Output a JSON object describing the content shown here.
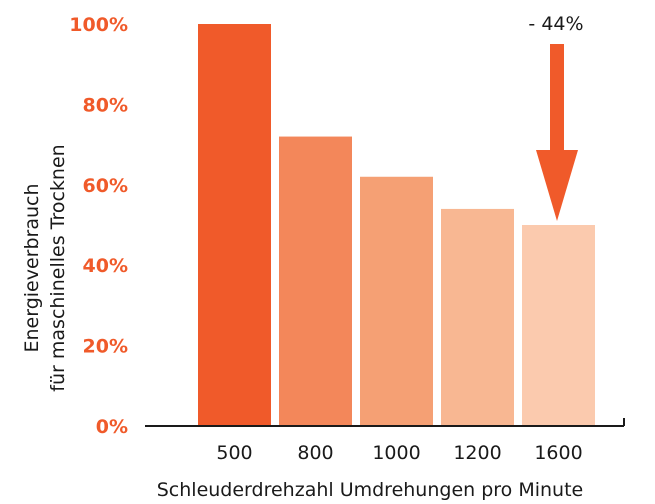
{
  "chart_data": {
    "type": "bar",
    "categories": [
      "500",
      "800",
      "1000",
      "1200",
      "1600"
    ],
    "values": [
      100,
      72,
      62,
      54,
      50
    ],
    "bar_colors": [
      "#f05a2a",
      "#f3875a",
      "#f5a074",
      "#f8b792",
      "#fbcaae"
    ],
    "ylim": [
      0,
      100
    ],
    "y_ticks": [
      "0%",
      "20%",
      "40%",
      "60%",
      "80%",
      "100%"
    ],
    "y_tick_values": [
      0,
      20,
      40,
      60,
      80,
      100
    ],
    "y_tick_color": "#f05a2a",
    "xlabel": "Schleuderdrehzahl Umdrehungen pro Minute",
    "ylabel_line1": "Energieverbrauch",
    "ylabel_line2": "für maschinelles Trocknen",
    "annotation": "- 44%",
    "arrow_color": "#f05a2a",
    "grid": false
  }
}
